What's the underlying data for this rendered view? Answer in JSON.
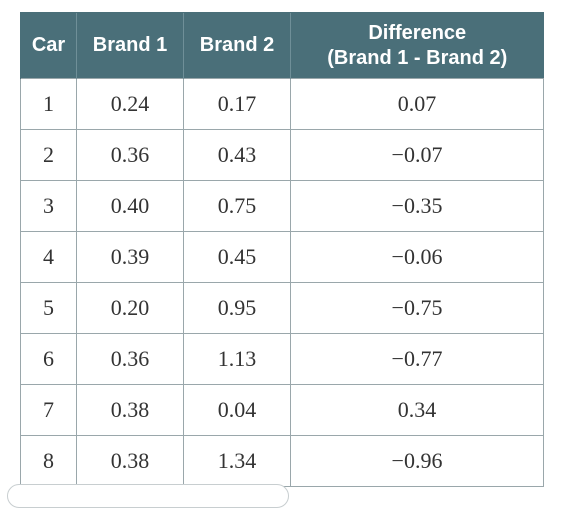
{
  "table": {
    "headers": [
      "Car",
      "Brand 1",
      "Brand 2"
    ],
    "difference_header": [
      "Difference",
      "(Brand 1 - Brand 2)"
    ],
    "rows": [
      [
        "1",
        "0.24",
        "0.17",
        "0.07"
      ],
      [
        "2",
        "0.36",
        "0.43",
        "−0.07"
      ],
      [
        "3",
        "0.40",
        "0.75",
        "−0.35"
      ],
      [
        "4",
        "0.39",
        "0.45",
        "−0.06"
      ],
      [
        "5",
        "0.20",
        "0.95",
        "−0.75"
      ],
      [
        "6",
        "0.36",
        "1.13",
        "−0.77"
      ],
      [
        "7",
        "0.38",
        "0.04",
        "0.34"
      ],
      [
        "8",
        "0.38",
        "1.34",
        "−0.96"
      ]
    ]
  },
  "colors": {
    "header_background": "#4a6f79",
    "header_text": "#ffffff",
    "cell_border": "#9aa7ab"
  }
}
